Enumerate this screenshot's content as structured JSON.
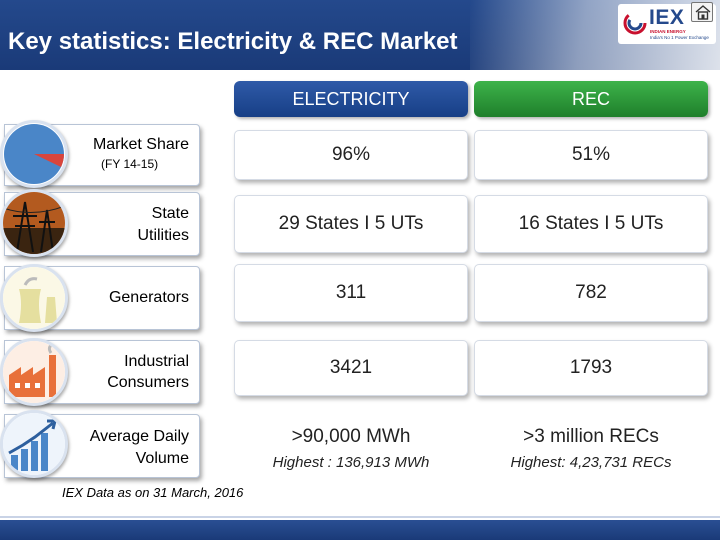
{
  "header": {
    "title": "Key statistics: Electricity & REC Market",
    "logo_text": "IEX",
    "logo_tagline_1": "INDIAN ENERGY",
    "logo_tagline_2": "India's No 1 Power Exchange",
    "home_icon": "home-icon"
  },
  "columns": {
    "electricity": "ELECTRICITY",
    "rec": "REC"
  },
  "colors": {
    "header_blue": "#1a3a78",
    "electricity_blue": "#173f86",
    "rec_green": "#1f7f2b"
  },
  "rows": [
    {
      "label": "Market Share",
      "sublabel": "(FY 14-15)",
      "icon": "pie-chart-icon",
      "electricity": "96%",
      "rec": "51%"
    },
    {
      "label_line1": "State",
      "label_line2": "Utilities",
      "icon": "power-lines-icon",
      "electricity": "29 States I 5 UTs",
      "rec": "16 States I 5 UTs"
    },
    {
      "label": "Generators",
      "icon": "power-plant-icon",
      "electricity": "311",
      "rec": "782"
    },
    {
      "label_line1": "Industrial",
      "label_line2": "Consumers",
      "icon": "factory-icon",
      "electricity": "3421",
      "rec": "1793"
    },
    {
      "label_line1": "Average Daily",
      "label_line2": "Volume",
      "icon": "bar-growth-icon",
      "electricity": ">90,000 MWh",
      "electricity_note": "Highest : 136,913 MWh",
      "rec": ">3 million RECs",
      "rec_note": "Highest: 4,23,731 RECs"
    }
  ],
  "footnote": "IEX Data as on 31 March, 2016"
}
